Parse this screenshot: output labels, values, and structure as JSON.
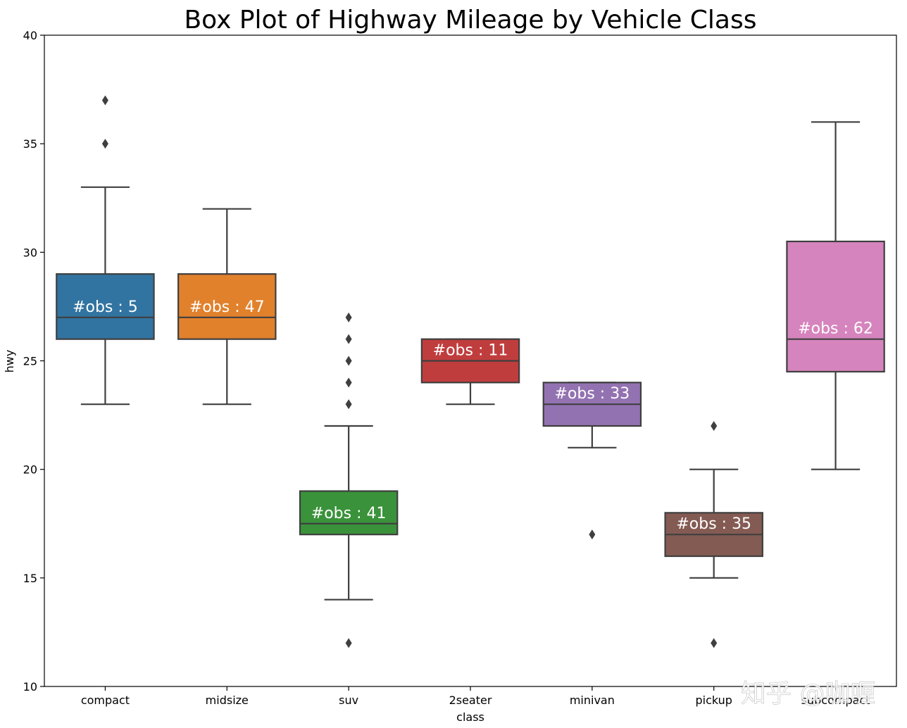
{
  "chart_data": {
    "type": "box",
    "title": "Box Plot of Highway Mileage by Vehicle Class",
    "xlabel": "class",
    "ylabel": "hwy",
    "ylim": [
      10,
      40
    ],
    "yticks": [
      10,
      15,
      20,
      25,
      30,
      35,
      40
    ],
    "grid": false,
    "categories": [
      "compact",
      "midsize",
      "suv",
      "2seater",
      "minivan",
      "pickup",
      "subcompact"
    ],
    "series": [
      {
        "category": "compact",
        "color": "#3274a1",
        "q1": 26,
        "median": 27,
        "q3": 29,
        "whisker_low": 23,
        "whisker_high": 33,
        "outliers": [
          35,
          37
        ],
        "label": "#obs : 5"
      },
      {
        "category": "midsize",
        "color": "#e1812c",
        "q1": 26,
        "median": 27,
        "q3": 29,
        "whisker_low": 23,
        "whisker_high": 32,
        "outliers": [],
        "label": "#obs : 47"
      },
      {
        "category": "suv",
        "color": "#3a923a",
        "q1": 17,
        "median": 17.5,
        "q3": 19,
        "whisker_low": 14,
        "whisker_high": 22,
        "outliers": [
          12,
          23,
          24,
          25,
          26,
          27
        ],
        "label": "#obs : 41"
      },
      {
        "category": "2seater",
        "color": "#c03d3e",
        "q1": 24,
        "median": 25,
        "q3": 26,
        "whisker_low": 23,
        "whisker_high": 26,
        "outliers": [],
        "label": "#obs : 11"
      },
      {
        "category": "minivan",
        "color": "#9372b2",
        "q1": 22,
        "median": 23,
        "q3": 24,
        "whisker_low": 21,
        "whisker_high": 24,
        "outliers": [
          17
        ],
        "label": "#obs : 33"
      },
      {
        "category": "pickup",
        "color": "#845b53",
        "q1": 16,
        "median": 17,
        "q3": 18,
        "whisker_low": 15,
        "whisker_high": 20,
        "outliers": [
          12,
          22
        ],
        "label": "#obs : 35"
      },
      {
        "category": "subcompact",
        "color": "#d684bd",
        "q1": 24.5,
        "median": 26,
        "q3": 30.5,
        "whisker_low": 20,
        "whisker_high": 36,
        "outliers": [],
        "label": "#obs : 62"
      }
    ]
  },
  "watermark": "知乎 @咖喱"
}
